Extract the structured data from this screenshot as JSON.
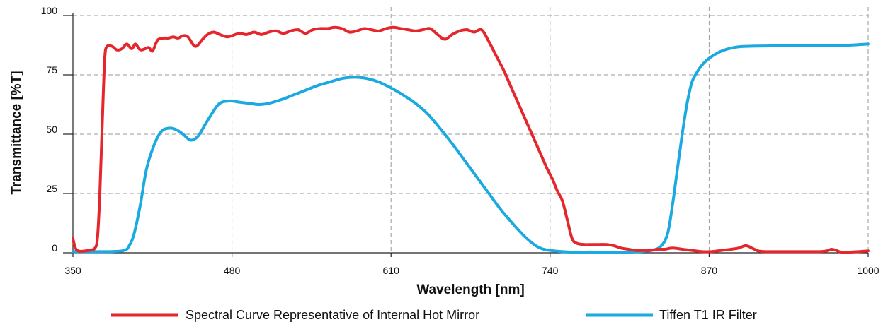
{
  "chart_data": {
    "type": "line",
    "title": "",
    "xlabel": "Wavelength [nm]",
    "ylabel": "Transmittance [%T]",
    "xlim": [
      350,
      1000
    ],
    "ylim": [
      0,
      100
    ],
    "x_ticks": [
      350,
      480,
      610,
      740,
      870,
      1000
    ],
    "y_ticks": [
      0,
      25,
      50,
      75,
      100
    ],
    "x_tick_labels": [
      "350",
      "480",
      "610",
      "740",
      "870",
      "1000"
    ],
    "y_tick_labels": [
      "0",
      "25",
      "50",
      "75",
      "100"
    ],
    "grid": true,
    "legend_position": "bottom",
    "series": [
      {
        "name": "Spectral Curve Representative of Internal Hot Mirror",
        "color": "#e5262c",
        "x": [
          350,
          352,
          355,
          360,
          365,
          368,
          370,
          372,
          374,
          376,
          378,
          382,
          386,
          390,
          394,
          398,
          401,
          404,
          406,
          409,
          412,
          415,
          418,
          420,
          424,
          428,
          432,
          436,
          440,
          444,
          450,
          456,
          460,
          465,
          470,
          476,
          480,
          486,
          492,
          498,
          504,
          510,
          516,
          522,
          528,
          534,
          540,
          546,
          552,
          558,
          564,
          570,
          576,
          582,
          588,
          594,
          600,
          606,
          612,
          618,
          624,
          630,
          636,
          642,
          648,
          654,
          660,
          666,
          672,
          678,
          684,
          690,
          696,
          702,
          708,
          714,
          720,
          726,
          732,
          738,
          742,
          746,
          750,
          754,
          758,
          762,
          768,
          774,
          780,
          786,
          792,
          798,
          804,
          810,
          816,
          822,
          828,
          834,
          840,
          848,
          856,
          864,
          872,
          880,
          888,
          894,
          900,
          905,
          910,
          916,
          924,
          936,
          948,
          960,
          966,
          970,
          974,
          978,
          984,
          992,
          1000
        ],
        "values": [
          6,
          2,
          0.7,
          0.8,
          1.2,
          2,
          6,
          25,
          55,
          82,
          87,
          87,
          85.5,
          86,
          88,
          86,
          88,
          86,
          85.5,
          86,
          86.5,
          85,
          88.5,
          90,
          90.5,
          90.5,
          91,
          90.5,
          91.5,
          91,
          87,
          90,
          92,
          93,
          92,
          91,
          91.5,
          92.5,
          92,
          93,
          92,
          93,
          93.5,
          92.5,
          93.5,
          94,
          92.5,
          94,
          94.5,
          94.5,
          95,
          94.5,
          93,
          93.5,
          94.5,
          94,
          93.5,
          94.5,
          95,
          94.5,
          94,
          93.5,
          94,
          94.5,
          92,
          90,
          92,
          93.5,
          94,
          93,
          94,
          89,
          83,
          77,
          70,
          63,
          56,
          49,
          42,
          35,
          31,
          26,
          22,
          14,
          6,
          4,
          3.5,
          3.5,
          3.5,
          3.5,
          3,
          2,
          1.5,
          1,
          1,
          1,
          1.5,
          1.5,
          2,
          1.5,
          1,
          0.5,
          0.5,
          1,
          1.5,
          2,
          3,
          2,
          0.8,
          0.5,
          0.5,
          0.5,
          0.5,
          0.5,
          0.8,
          1.5,
          1,
          0.2,
          0.3,
          0.5,
          0.8
        ]
      },
      {
        "name": "Tiffen T1 IR Filter",
        "color": "#1aa9e0",
        "x": [
          350,
          360,
          380,
          392,
          396,
          400,
          405,
          410,
          416,
          422,
          428,
          434,
          440,
          446,
          452,
          458,
          464,
          470,
          478,
          486,
          494,
          502,
          510,
          520,
          530,
          540,
          550,
          560,
          570,
          580,
          590,
          600,
          610,
          620,
          630,
          640,
          650,
          660,
          670,
          680,
          690,
          700,
          710,
          720,
          730,
          740,
          760,
          780,
          800,
          820,
          830,
          836,
          840,
          844,
          848,
          852,
          856,
          860,
          864,
          870,
          880,
          890,
          900,
          920,
          940,
          960,
          980,
          1000
        ],
        "values": [
          0.5,
          0.5,
          0.5,
          1,
          3,
          8,
          20,
          35,
          45,
          51,
          52.5,
          52,
          50,
          47.5,
          49,
          54,
          59,
          63,
          64,
          63.5,
          63,
          62.5,
          63,
          64.5,
          66.5,
          68.5,
          70.5,
          72,
          73.5,
          74,
          73.5,
          72,
          69.5,
          66.5,
          63,
          58.5,
          52.5,
          46,
          39,
          32,
          25,
          18,
          12,
          6.5,
          2.5,
          1,
          0.2,
          0.1,
          0.2,
          0.8,
          2.5,
          8,
          20,
          35,
          50,
          63,
          72,
          76,
          79,
          82,
          85,
          86.5,
          87,
          87.2,
          87.2,
          87.2,
          87.4,
          88
        ]
      }
    ]
  }
}
